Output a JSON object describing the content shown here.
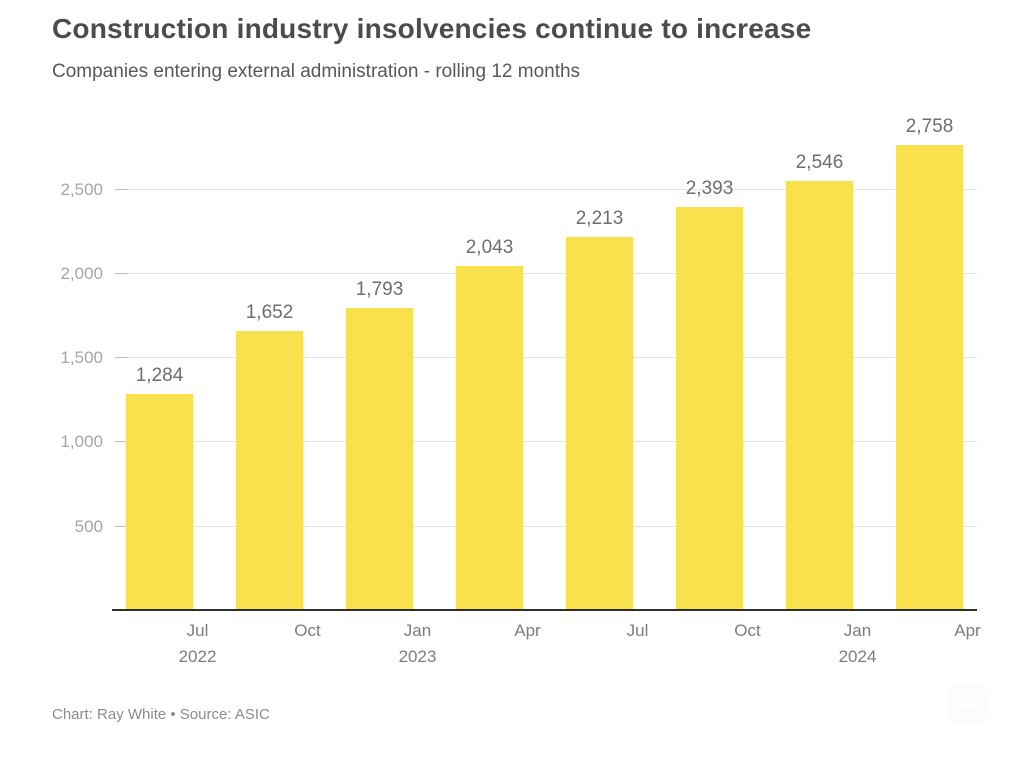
{
  "header": {
    "title": "Construction industry insolvencies continue to increase",
    "subtitle": "Companies entering external administration - rolling 12 months"
  },
  "footer": {
    "credit": "Chart: Ray White • Source: ASIC"
  },
  "chart_data": {
    "type": "bar",
    "title": "Construction industry insolvencies continue to increase",
    "subtitle": "Companies entering external administration - rolling 12 months",
    "categories": [
      "Jul 2022",
      "Oct 2022",
      "Jan 2023",
      "Apr 2023",
      "Jul 2023",
      "Oct 2023",
      "Jan 2024",
      "Apr 2024"
    ],
    "values": [
      1284,
      1652,
      1793,
      2043,
      2213,
      2393,
      2546,
      2758
    ],
    "value_labels": [
      "1,284",
      "1,652",
      "1,793",
      "2,043",
      "2,213",
      "2,393",
      "2,546",
      "2,758"
    ],
    "x_ticks": [
      {
        "month": "Jul",
        "year": "2022"
      },
      {
        "month": "Oct",
        "year": ""
      },
      {
        "month": "Jan",
        "year": "2023"
      },
      {
        "month": "Apr",
        "year": ""
      },
      {
        "month": "Jul",
        "year": ""
      },
      {
        "month": "Oct",
        "year": ""
      },
      {
        "month": "Jan",
        "year": "2024"
      },
      {
        "month": "Apr",
        "year": ""
      }
    ],
    "y_ticks": [
      500,
      1000,
      1500,
      2000,
      2500
    ],
    "y_tick_labels": [
      "500",
      "1,000",
      "1,500",
      "2,000",
      "2,500"
    ],
    "xlabel": "",
    "ylabel": "",
    "ylim": [
      0,
      2900
    ],
    "grid": true,
    "legend": "none",
    "bar_color": "#f9e14e",
    "axis_color": "#2e2e2e",
    "gridline_color": "#e2e2e2",
    "source_credit": "Chart: Ray White • Source: ASIC"
  }
}
